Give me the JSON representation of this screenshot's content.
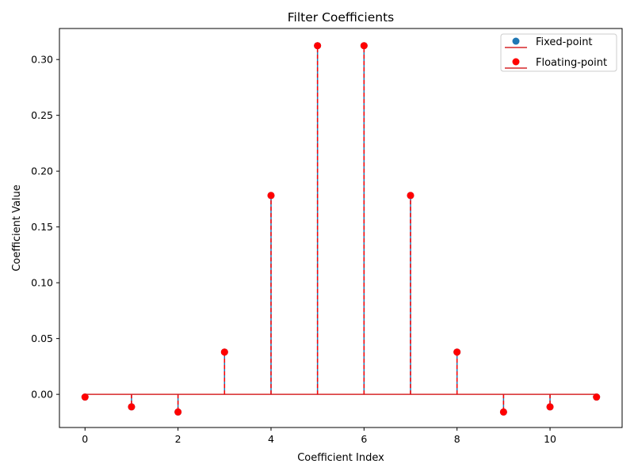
{
  "chart_data": {
    "type": "stem",
    "title": "Filter Coefficients",
    "xlabel": "Coefficient Index",
    "ylabel": "Coefficient Value",
    "xlim": [
      -0.55,
      11.55
    ],
    "ylim": [
      -0.0297,
      0.3278
    ],
    "xticks": [
      0,
      2,
      4,
      6,
      8,
      10
    ],
    "yticks": [
      0.0,
      0.05,
      0.1,
      0.15,
      0.2,
      0.25,
      0.3
    ],
    "ytick_labels": [
      "0.00",
      "0.05",
      "0.10",
      "0.15",
      "0.20",
      "0.25",
      "0.30"
    ],
    "xtick_labels": [
      "0",
      "2",
      "4",
      "6",
      "8",
      "10"
    ],
    "grid": false,
    "legend_position": "top-right",
    "x": [
      0,
      1,
      2,
      3,
      4,
      5,
      6,
      7,
      8,
      9,
      10,
      11
    ],
    "series": [
      {
        "name": "Fixed-point",
        "marker_color": "#1f77b4",
        "stem_color": "#1f77b4",
        "baseline_color": "#d62728",
        "values": [
          -0.0024,
          -0.0112,
          -0.0158,
          0.0379,
          0.1782,
          0.3124,
          0.3124,
          0.1782,
          0.0379,
          -0.0158,
          -0.0112,
          -0.0024
        ]
      },
      {
        "name": "Floating-point",
        "marker_color": "#ff0000",
        "stem_color": "#ff0000",
        "stem_style": "dashed",
        "baseline_color": "#d62728",
        "values": [
          -0.0024,
          -0.0112,
          -0.0158,
          0.0379,
          0.1782,
          0.3124,
          0.3124,
          0.1782,
          0.0379,
          -0.0158,
          -0.0112,
          -0.0024
        ]
      }
    ]
  }
}
